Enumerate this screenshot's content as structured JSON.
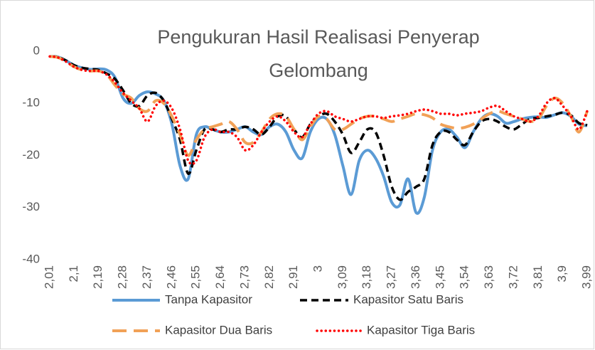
{
  "chart_data": {
    "type": "line",
    "title": [
      "Pengukuran Hasil Realisasi Penyerap",
      "Gelombang"
    ],
    "x": [
      2.01,
      2.04,
      2.07,
      2.1,
      2.13,
      2.16,
      2.19,
      2.22,
      2.25,
      2.28,
      2.31,
      2.34,
      2.37,
      2.4,
      2.43,
      2.46,
      2.49,
      2.52,
      2.55,
      2.58,
      2.61,
      2.64,
      2.67,
      2.7,
      2.73,
      2.76,
      2.79,
      2.82,
      2.85,
      2.88,
      2.91,
      2.94,
      2.97,
      3.0,
      3.03,
      3.06,
      3.09,
      3.12,
      3.15,
      3.18,
      3.21,
      3.24,
      3.27,
      3.3,
      3.33,
      3.36,
      3.39,
      3.42,
      3.45,
      3.48,
      3.51,
      3.54,
      3.57,
      3.6,
      3.63,
      3.66,
      3.69,
      3.72,
      3.75,
      3.78,
      3.81,
      3.84,
      3.87,
      3.9,
      3.93,
      3.96,
      3.99
    ],
    "series": [
      {
        "name": "Tanpa Kapasitor",
        "color": "#5b9bd5",
        "dash": "solid",
        "values": [
          -1,
          -1.1,
          -1.8,
          -2.7,
          -3.2,
          -3.5,
          -3.4,
          -3.6,
          -5,
          -9,
          -10,
          -8.5,
          -7.8,
          -8.2,
          -9.5,
          -14,
          -22,
          -24.5,
          -16,
          -14.5,
          -15,
          -15.5,
          -15.5,
          -15,
          -14.5,
          -15.5,
          -16,
          -14.5,
          -14,
          -15.5,
          -19,
          -20.5,
          -15.5,
          -13,
          -13,
          -16,
          -22,
          -27.5,
          -21,
          -19,
          -20.5,
          -24,
          -29,
          -29.5,
          -24.5,
          -31,
          -28,
          -19,
          -15.5,
          -15,
          -16.5,
          -18.5,
          -15.5,
          -13,
          -12,
          -12.5,
          -13.8,
          -13.5,
          -13,
          -12.7,
          -12.6,
          -12.7,
          -12.2,
          -11.8,
          -12.5,
          -14,
          -14.3
        ]
      },
      {
        "name": "Kapasitor Satu Baris",
        "color": "#000000",
        "dash": "dash",
        "values": [
          -1,
          -1.1,
          -1.8,
          -2.7,
          -3.2,
          -3.4,
          -3.6,
          -4.3,
          -5.3,
          -7.5,
          -10,
          -10.5,
          -8.5,
          -8,
          -9.5,
          -13,
          -17,
          -23.5,
          -19,
          -15,
          -15,
          -15.5,
          -15,
          -15,
          -14.5,
          -15,
          -16,
          -14.5,
          -12.5,
          -12.5,
          -15,
          -16.5,
          -14,
          -12.5,
          -12,
          -13.5,
          -16,
          -19.5,
          -17.5,
          -15,
          -15.5,
          -20,
          -26,
          -28.5,
          -27,
          -26,
          -24.5,
          -18,
          -15.5,
          -15.5,
          -17,
          -18,
          -15.5,
          -13.5,
          -13,
          -13.5,
          -14.5,
          -15,
          -14,
          -13,
          -12.8,
          -12.5,
          -12.2,
          -11.8,
          -12.3,
          -13.8,
          -14.2
        ]
      },
      {
        "name": "Kapasitor Dua Baris",
        "color": "#f1a157",
        "dash": "longdash",
        "values": [
          -1,
          -1.2,
          -2,
          -3,
          -3.6,
          -3.8,
          -3.8,
          -4.5,
          -6.5,
          -8.2,
          -9,
          -11,
          -11.5,
          -9.5,
          -10,
          -12.5,
          -16,
          -20,
          -17,
          -15,
          -14.5,
          -14,
          -13.5,
          -15,
          -17.5,
          -17.5,
          -15.5,
          -13,
          -12,
          -12.5,
          -15,
          -17,
          -14.5,
          -12.5,
          -13,
          -15,
          -15,
          -14,
          -13,
          -12.5,
          -12.5,
          -13,
          -13.5,
          -13,
          -12.5,
          -12,
          -12.2,
          -12.8,
          -14,
          -14.5,
          -14.8,
          -14.6,
          -14,
          -13,
          -12,
          -11.5,
          -12,
          -12.5,
          -13,
          -13.5,
          -13,
          -10.5,
          -9,
          -10,
          -12.5,
          -15.5,
          -11.5
        ]
      },
      {
        "name": "Kapasitor Tiga Baris",
        "color": "#ff0000",
        "dash": "dot",
        "values": [
          -1,
          -1.2,
          -2,
          -3,
          -3.6,
          -3.8,
          -3.8,
          -4.5,
          -6,
          -8,
          -9.5,
          -11,
          -13.5,
          -10.5,
          -9.5,
          -11,
          -15,
          -21,
          -21,
          -16.5,
          -15,
          -15.5,
          -15.5,
          -16.5,
          -19,
          -18,
          -15.5,
          -13.5,
          -12.5,
          -13.5,
          -15.5,
          -16.5,
          -14,
          -12,
          -11.5,
          -12.5,
          -13,
          -13.5,
          -13,
          -12.5,
          -12.5,
          -12.8,
          -12.5,
          -12.3,
          -12,
          -11.5,
          -11.2,
          -11.5,
          -12,
          -12,
          -12.3,
          -12,
          -11.8,
          -11.5,
          -10.8,
          -10.5,
          -11.5,
          -12.5,
          -13,
          -13.5,
          -12.5,
          -10,
          -9,
          -10.5,
          -12.5,
          -15,
          -11.5
        ]
      }
    ],
    "xlim": [
      2.01,
      3.99
    ],
    "xticks": [
      {
        "value": 2.01,
        "label": "2,01"
      },
      {
        "value": 2.1,
        "label": "2,1"
      },
      {
        "value": 2.19,
        "label": "2,19"
      },
      {
        "value": 2.28,
        "label": "2,28"
      },
      {
        "value": 2.37,
        "label": "2,37"
      },
      {
        "value": 2.46,
        "label": "2,46"
      },
      {
        "value": 2.55,
        "label": "2,55"
      },
      {
        "value": 2.64,
        "label": "2,64"
      },
      {
        "value": 2.73,
        "label": "2,73"
      },
      {
        "value": 2.82,
        "label": "2,82"
      },
      {
        "value": 2.91,
        "label": "2,91"
      },
      {
        "value": 3.0,
        "label": "3"
      },
      {
        "value": 3.09,
        "label": "3,09"
      },
      {
        "value": 3.18,
        "label": "3,18"
      },
      {
        "value": 3.27,
        "label": "3,27"
      },
      {
        "value": 3.36,
        "label": "3,36"
      },
      {
        "value": 3.45,
        "label": "3,45"
      },
      {
        "value": 3.54,
        "label": "3,54"
      },
      {
        "value": 3.63,
        "label": "3,63"
      },
      {
        "value": 3.72,
        "label": "3,72"
      },
      {
        "value": 3.81,
        "label": "3,81"
      },
      {
        "value": 3.9,
        "label": "3,9"
      },
      {
        "value": 3.99,
        "label": "3,99"
      }
    ],
    "ylim": [
      -40,
      0
    ],
    "yticks": [
      0,
      -10,
      -20,
      -30,
      -40
    ],
    "grid": false,
    "legend": "bottom"
  }
}
